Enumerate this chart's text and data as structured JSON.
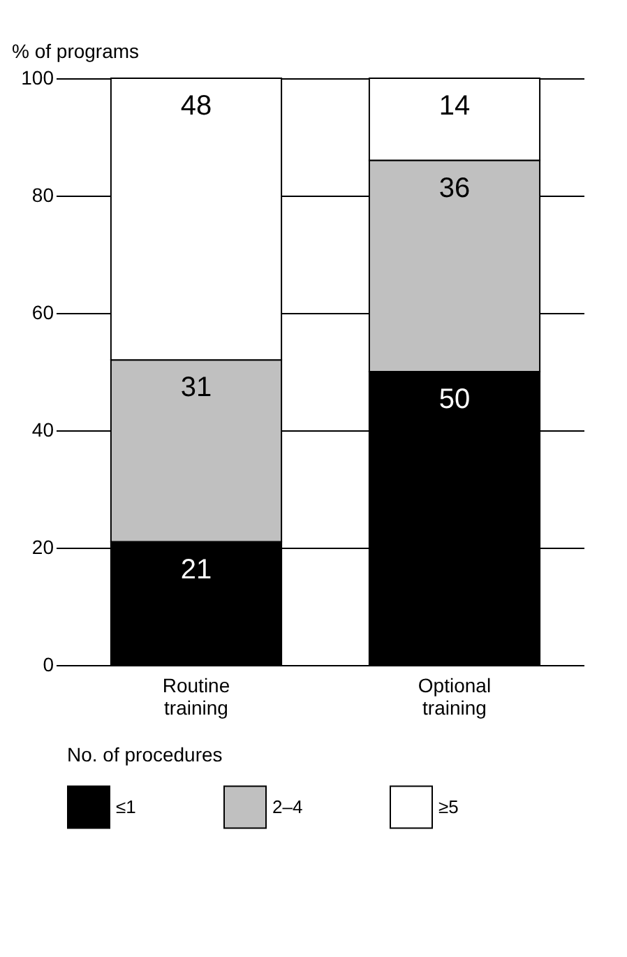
{
  "chart_data": {
    "type": "bar",
    "stacked": true,
    "ylabel": "% of programs",
    "legend_title": "No. of procedures",
    "categories": [
      "Routine training",
      "Optional training"
    ],
    "series": [
      {
        "name": "≤1",
        "color": "#000000",
        "values": [
          21,
          50
        ]
      },
      {
        "name": "2–4",
        "color": "#c0c0c0",
        "values": [
          31,
          36
        ]
      },
      {
        "name": "≥5",
        "color": "#ffffff",
        "values": [
          48,
          14
        ]
      }
    ],
    "ylim": [
      0,
      100
    ],
    "yticks": [
      0,
      20,
      40,
      60,
      80,
      100
    ],
    "grid": "y",
    "legend": "bottom",
    "data_labels": true
  }
}
